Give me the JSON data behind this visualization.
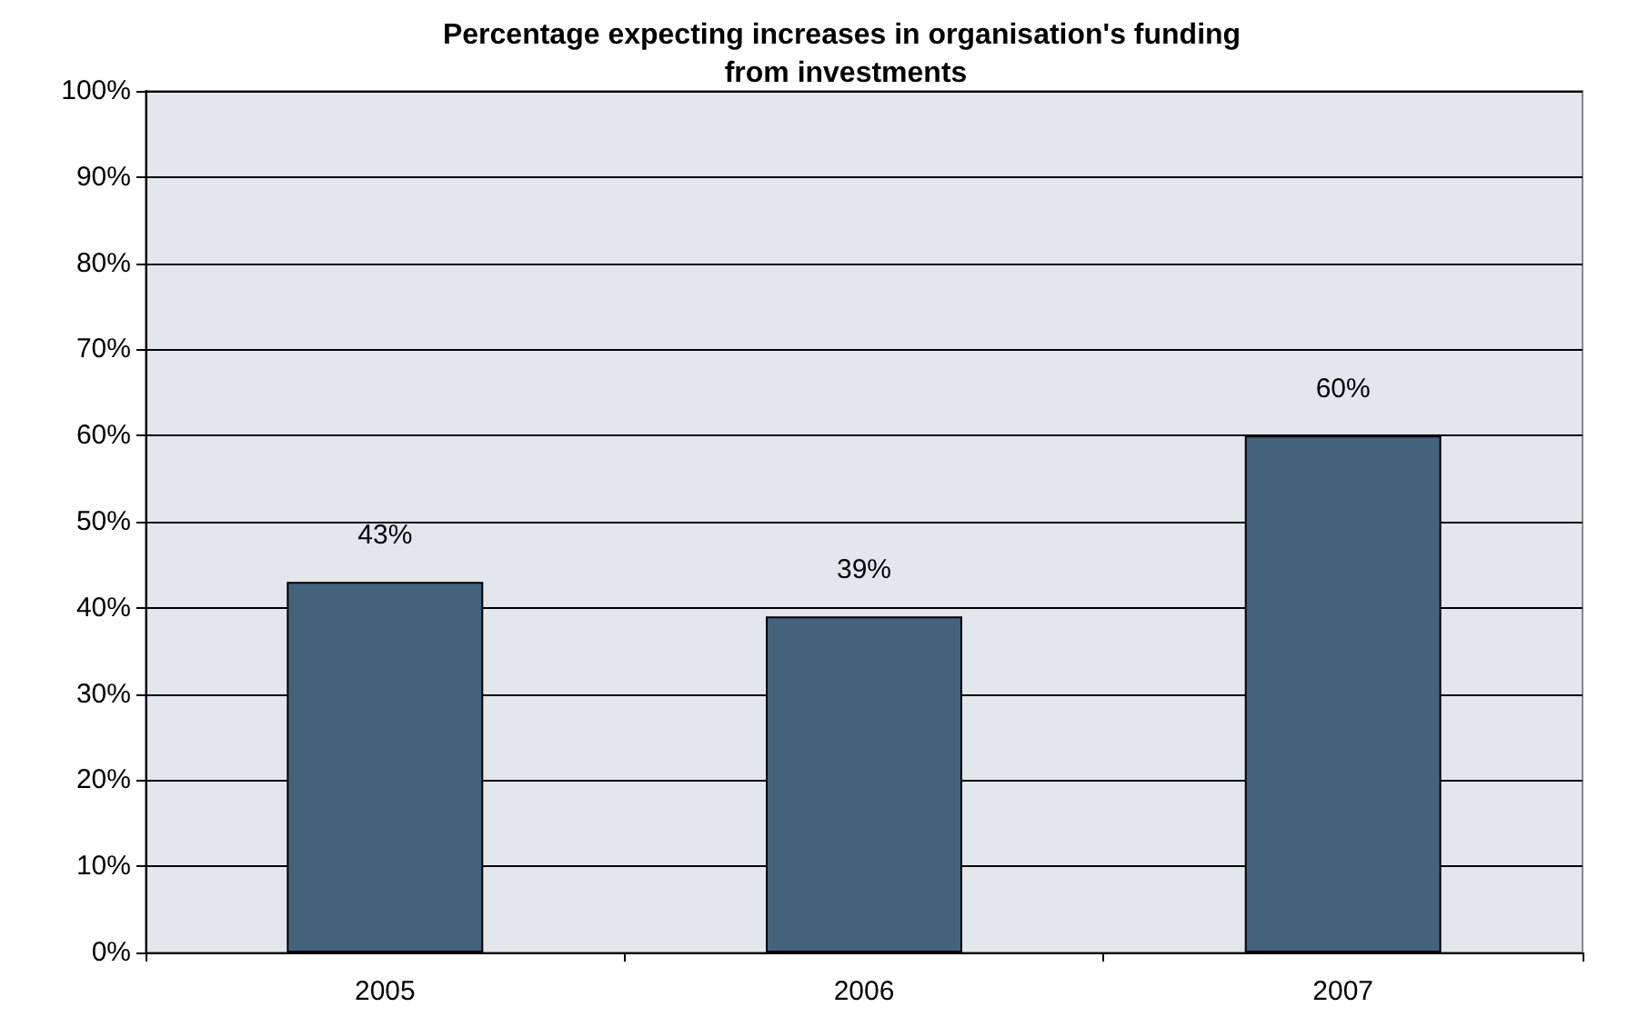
{
  "chart_data": {
    "type": "bar",
    "title": "Percentage expecting increases in organisation's funding from investments",
    "categories": [
      "2005",
      "2006",
      "2007"
    ],
    "values": [
      43,
      39,
      60
    ],
    "value_labels": [
      "43%",
      "39%",
      "60%"
    ],
    "color": "#43627c",
    "ylim": [
      0,
      100
    ],
    "yticks": [
      {
        "value": 0,
        "label": "0%"
      },
      {
        "value": 10,
        "label": "10%"
      },
      {
        "value": 20,
        "label": "20%"
      },
      {
        "value": 30,
        "label": "30%"
      },
      {
        "value": 40,
        "label": "40%"
      },
      {
        "value": 50,
        "label": "50%"
      },
      {
        "value": 60,
        "label": "60%"
      },
      {
        "value": 70,
        "label": "70%"
      },
      {
        "value": 80,
        "label": "80%"
      },
      {
        "value": 90,
        "label": "90%"
      },
      {
        "value": 100,
        "label": "100%"
      }
    ],
    "grid": "y"
  }
}
